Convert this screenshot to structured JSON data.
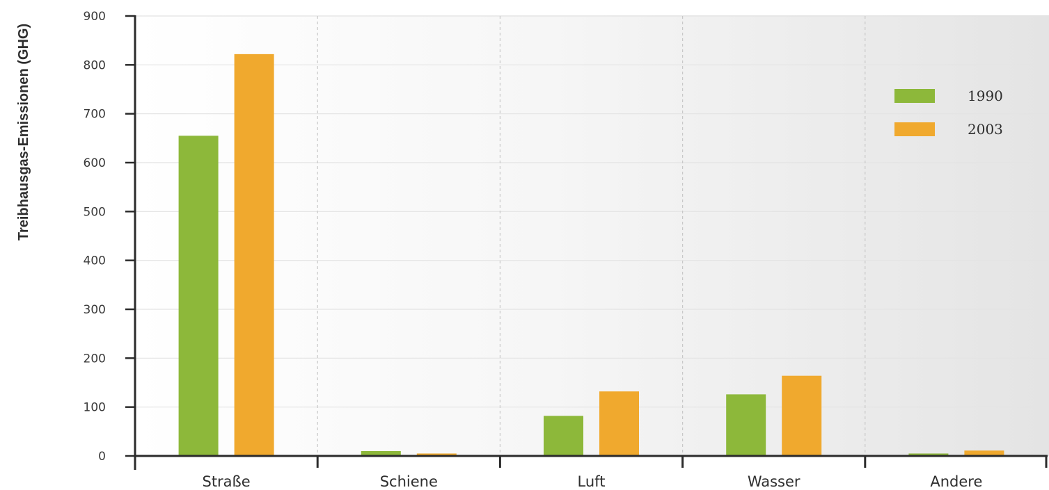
{
  "chart_data": {
    "type": "bar",
    "categories": [
      "Straße",
      "Schiene",
      "Luft",
      "Wasser",
      "Andere"
    ],
    "series": [
      {
        "name": "1990",
        "values": [
          655,
          10,
          82,
          126,
          5
        ]
      },
      {
        "name": "2003",
        "values": [
          822,
          5,
          132,
          164,
          11
        ]
      }
    ],
    "ylabel": "Treibhausgas-Emissionen (GHG)",
    "xlabel": "",
    "ylim": [
      0,
      900
    ],
    "yticks": [
      0,
      100,
      200,
      300,
      400,
      500,
      600,
      700,
      800,
      900
    ],
    "grid": true,
    "legend_position": "top-right",
    "colors": {
      "series_1990": "#8db83a",
      "series_2003": "#f0a92e",
      "gridline": "#e3e3e3",
      "divider": "#c8c8c8",
      "axis": "#2b2b2b"
    }
  }
}
